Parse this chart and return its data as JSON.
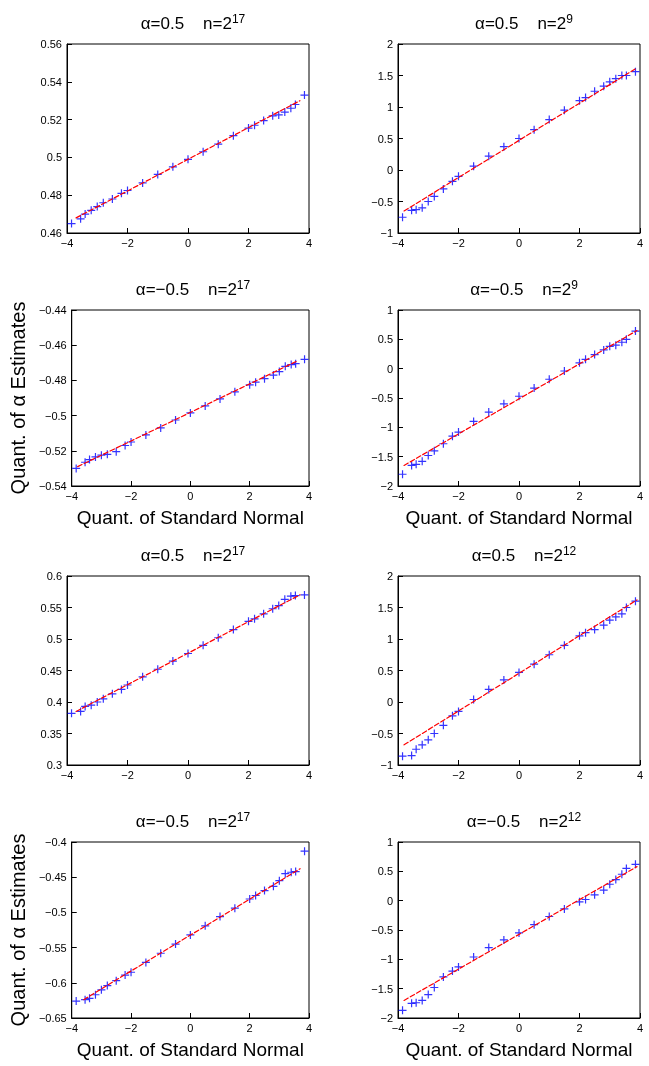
{
  "chart_data": [
    {
      "type": "scatter",
      "title": "α=0.5    n=2$^{17}$",
      "xlim": [
        -4,
        4
      ],
      "xticks": [
        -4,
        -2,
        0,
        2,
        4
      ],
      "ylim": [
        0.46,
        0.56
      ],
      "yticks": [
        0.46,
        0.48,
        0.5,
        0.52,
        0.54,
        0.56
      ],
      "grid": false,
      "x": [
        -3.85,
        -3.55,
        -3.4,
        -3.2,
        -3.0,
        -2.8,
        -2.5,
        -2.2,
        -2,
        -1.5,
        -1,
        -0.5,
        0,
        0.5,
        1,
        1.5,
        2,
        2.2,
        2.5,
        2.8,
        3.0,
        3.2,
        3.4,
        3.55,
        3.85
      ],
      "series": [
        {
          "type": "scatter",
          "color": "#0000ff",
          "marker": "cross",
          "values": [
            0.465,
            0.4675,
            0.47,
            0.472,
            0.474,
            0.476,
            0.478,
            0.481,
            0.4825,
            0.4865,
            0.491,
            0.495,
            0.499,
            0.503,
            0.507,
            0.5115,
            0.5155,
            0.517,
            0.5195,
            0.522,
            0.5225,
            0.524,
            0.526,
            0.528,
            0.533
          ]
        },
        {
          "type": "line",
          "color": "#ff0000",
          "line_style": "dashed",
          "marker": "none",
          "x": [
            -3.7,
            3.7
          ],
          "values": [
            0.468,
            0.53
          ]
        }
      ]
    },
    {
      "type": "scatter",
      "title": "α=0.5    n=2$^{9}$",
      "xlim": [
        -4,
        4
      ],
      "xticks": [
        -4,
        -2,
        0,
        2,
        4
      ],
      "ylim": [
        -1,
        2
      ],
      "yticks": [
        -1,
        -0.5,
        0,
        0.5,
        1,
        1.5,
        2
      ],
      "grid": false,
      "x": [
        -3.85,
        -3.55,
        -3.4,
        -3.2,
        -3.0,
        -2.8,
        -2.5,
        -2.2,
        -2,
        -1.5,
        -1,
        -0.5,
        0,
        0.5,
        1,
        1.5,
        2,
        2.2,
        2.5,
        2.8,
        3.0,
        3.2,
        3.4,
        3.55,
        3.85
      ],
      "series": [
        {
          "type": "scatter",
          "color": "#0000ff",
          "marker": "cross",
          "values": [
            -0.75,
            -0.64,
            -0.63,
            -0.6,
            -0.5,
            -0.42,
            -0.3,
            -0.18,
            -0.1,
            0.06,
            0.22,
            0.37,
            0.5,
            0.64,
            0.8,
            0.95,
            1.1,
            1.15,
            1.25,
            1.33,
            1.4,
            1.45,
            1.5,
            1.5,
            1.56
          ]
        },
        {
          "type": "line",
          "color": "#ff0000",
          "line_style": "dashed",
          "marker": "none",
          "x": [
            -3.8,
            3.9
          ],
          "values": [
            -0.65,
            1.62
          ]
        }
      ]
    },
    {
      "type": "scatter",
      "title": "α=−0.5    n=2$^{17}$",
      "ylabel": "Quant. of α Estimates",
      "xlabel": "Quant. of Standard Normal",
      "xlim": [
        -4,
        4
      ],
      "xticks": [
        -4,
        -2,
        0,
        2,
        4
      ],
      "ylim": [
        -0.54,
        -0.44
      ],
      "yticks": [
        -0.54,
        -0.52,
        -0.5,
        -0.48,
        -0.46,
        -0.44
      ],
      "grid": false,
      "x": [
        -3.85,
        -3.55,
        -3.4,
        -3.2,
        -3.0,
        -2.8,
        -2.5,
        -2.2,
        -2,
        -1.5,
        -1,
        -0.5,
        0,
        0.5,
        1,
        1.5,
        2,
        2.2,
        2.5,
        2.8,
        3.0,
        3.2,
        3.4,
        3.55,
        3.85
      ],
      "series": [
        {
          "type": "scatter",
          "color": "#0000ff",
          "marker": "cross",
          "values": [
            -0.53,
            -0.5265,
            -0.525,
            -0.5235,
            -0.5225,
            -0.522,
            -0.5205,
            -0.517,
            -0.515,
            -0.511,
            -0.507,
            -0.5025,
            -0.4985,
            -0.4945,
            -0.4905,
            -0.4865,
            -0.4825,
            -0.481,
            -0.479,
            -0.477,
            -0.475,
            -0.472,
            -0.471,
            -0.4705,
            -0.468
          ]
        },
        {
          "type": "line",
          "color": "#ff0000",
          "line_style": "dashed",
          "marker": "none",
          "x": [
            -3.8,
            3.6
          ],
          "values": [
            -0.529,
            -0.469
          ]
        }
      ]
    },
    {
      "type": "scatter",
      "title": "α=−0.5    n=2$^{9}$",
      "xlabel": "Quant. of Standard Normal",
      "xlim": [
        -4,
        4
      ],
      "xticks": [
        -4,
        -2,
        0,
        2,
        4
      ],
      "ylim": [
        -2,
        1
      ],
      "yticks": [
        -2,
        -1.5,
        -1,
        -0.5,
        0,
        0.5,
        1
      ],
      "grid": false,
      "x": [
        -3.85,
        -3.55,
        -3.4,
        -3.2,
        -3.0,
        -2.8,
        -2.5,
        -2.2,
        -2,
        -1.5,
        -1,
        -0.5,
        0,
        0.5,
        1,
        1.5,
        2,
        2.2,
        2.5,
        2.8,
        3.0,
        3.2,
        3.4,
        3.55,
        3.85
      ],
      "series": [
        {
          "type": "scatter",
          "color": "#0000ff",
          "marker": "cross",
          "values": [
            -1.8,
            -1.65,
            -1.63,
            -1.58,
            -1.48,
            -1.4,
            -1.28,
            -1.15,
            -1.08,
            -0.9,
            -0.74,
            -0.6,
            -0.47,
            -0.33,
            -0.18,
            -0.04,
            0.1,
            0.16,
            0.24,
            0.32,
            0.38,
            0.4,
            0.45,
            0.5,
            0.64
          ]
        },
        {
          "type": "line",
          "color": "#ff0000",
          "line_style": "dashed",
          "marker": "none",
          "x": [
            -3.8,
            3.9
          ],
          "values": [
            -1.65,
            0.65
          ]
        }
      ]
    },
    {
      "type": "scatter",
      "title": "α=0.5    n=2$^{17}$",
      "xlim": [
        -4,
        4
      ],
      "xticks": [
        -4,
        -2,
        0,
        2,
        4
      ],
      "ylim": [
        0.3,
        0.6
      ],
      "yticks": [
        0.3,
        0.35,
        0.4,
        0.45,
        0.5,
        0.55,
        0.6
      ],
      "grid": false,
      "x": [
        -3.85,
        -3.55,
        -3.4,
        -3.2,
        -3.0,
        -2.8,
        -2.5,
        -2.2,
        -2,
        -1.5,
        -1,
        -0.5,
        0,
        0.5,
        1,
        1.5,
        2,
        2.2,
        2.5,
        2.8,
        3.0,
        3.2,
        3.4,
        3.55,
        3.85
      ],
      "series": [
        {
          "type": "scatter",
          "color": "#0000ff",
          "marker": "cross",
          "values": [
            0.382,
            0.385,
            0.393,
            0.395,
            0.4,
            0.405,
            0.413,
            0.42,
            0.427,
            0.44,
            0.452,
            0.465,
            0.477,
            0.49,
            0.502,
            0.515,
            0.528,
            0.532,
            0.54,
            0.548,
            0.553,
            0.563,
            0.568,
            0.569,
            0.57
          ]
        },
        {
          "type": "line",
          "color": "#ff0000",
          "line_style": "dashed",
          "marker": "none",
          "x": [
            -3.7,
            3.7
          ],
          "values": [
            0.385,
            0.57
          ]
        }
      ]
    },
    {
      "type": "scatter",
      "title": "α=0.5    n=2$^{12}$",
      "xlim": [
        -4,
        4
      ],
      "xticks": [
        -4,
        -2,
        0,
        2,
        4
      ],
      "ylim": [
        -1,
        2
      ],
      "yticks": [
        -1,
        -0.5,
        0,
        0.5,
        1,
        1.5,
        2
      ],
      "grid": false,
      "x": [
        -3.85,
        -3.55,
        -3.4,
        -3.2,
        -3.0,
        -2.8,
        -2.5,
        -2.2,
        -2,
        -1.5,
        -1,
        -0.5,
        0,
        0.5,
        1,
        1.5,
        2,
        2.2,
        2.5,
        2.8,
        3.0,
        3.2,
        3.4,
        3.55,
        3.85
      ],
      "series": [
        {
          "type": "scatter",
          "color": "#0000ff",
          "marker": "cross",
          "values": [
            -0.86,
            -0.85,
            -0.75,
            -0.68,
            -0.6,
            -0.5,
            -0.37,
            -0.22,
            -0.15,
            0.04,
            0.2,
            0.35,
            0.47,
            0.6,
            0.75,
            0.9,
            1.05,
            1.1,
            1.15,
            1.22,
            1.3,
            1.35,
            1.4,
            1.5,
            1.6
          ]
        },
        {
          "type": "line",
          "color": "#ff0000",
          "line_style": "dashed",
          "marker": "none",
          "x": [
            -3.8,
            3.9
          ],
          "values": [
            -0.68,
            1.62
          ]
        }
      ]
    },
    {
      "type": "scatter",
      "title": "α=−0.5    n=2$^{17}$",
      "ylabel": "Quant. of α Estimates",
      "xlabel": "Quant. of Standard Normal",
      "xlim": [
        -4,
        4
      ],
      "xticks": [
        -4,
        -2,
        0,
        2,
        4
      ],
      "ylim": [
        -0.65,
        -0.4
      ],
      "yticks": [
        -0.65,
        -0.6,
        -0.55,
        -0.5,
        -0.45,
        -0.4
      ],
      "grid": false,
      "x": [
        -3.85,
        -3.55,
        -3.4,
        -3.2,
        -3.0,
        -2.8,
        -2.5,
        -2.2,
        -2,
        -1.5,
        -1,
        -0.5,
        0,
        0.5,
        1,
        1.5,
        2,
        2.2,
        2.5,
        2.8,
        3.0,
        3.2,
        3.4,
        3.55,
        3.85
      ],
      "series": [
        {
          "type": "scatter",
          "color": "#0000ff",
          "marker": "cross",
          "values": [
            -0.626,
            -0.624,
            -0.622,
            -0.617,
            -0.61,
            -0.604,
            -0.597,
            -0.589,
            -0.585,
            -0.571,
            -0.558,
            -0.545,
            -0.532,
            -0.519,
            -0.506,
            -0.494,
            -0.481,
            -0.476,
            -0.469,
            -0.463,
            -0.455,
            -0.445,
            -0.443,
            -0.442,
            -0.413
          ]
        },
        {
          "type": "line",
          "color": "#ff0000",
          "line_style": "dashed",
          "marker": "none",
          "x": [
            -3.6,
            3.7
          ],
          "values": [
            -0.624,
            -0.438
          ]
        }
      ]
    },
    {
      "type": "scatter",
      "title": "α=−0.5    n=2$^{12}$",
      "xlabel": "Quant. of Standard Normal",
      "xlim": [
        -4,
        4
      ],
      "xticks": [
        -4,
        -2,
        0,
        2,
        4
      ],
      "ylim": [
        -2,
        1
      ],
      "yticks": [
        -2,
        -1.5,
        -1,
        -0.5,
        0,
        0.5,
        1
      ],
      "grid": false,
      "x": [
        -3.85,
        -3.55,
        -3.4,
        -3.2,
        -3.0,
        -2.8,
        -2.5,
        -2.2,
        -2,
        -1.5,
        -1,
        -0.5,
        0,
        0.5,
        1,
        1.5,
        2,
        2.2,
        2.5,
        2.8,
        3.0,
        3.2,
        3.4,
        3.55,
        3.85
      ],
      "series": [
        {
          "type": "scatter",
          "color": "#0000ff",
          "marker": "cross",
          "values": [
            -1.87,
            -1.75,
            -1.74,
            -1.7,
            -1.6,
            -1.48,
            -1.3,
            -1.2,
            -1.13,
            -0.96,
            -0.8,
            -0.67,
            -0.55,
            -0.41,
            -0.27,
            -0.14,
            -0.02,
            0.02,
            0.1,
            0.18,
            0.28,
            0.36,
            0.45,
            0.55,
            0.62
          ]
        },
        {
          "type": "line",
          "color": "#ff0000",
          "line_style": "dashed",
          "marker": "none",
          "x": [
            -3.8,
            3.9
          ],
          "values": [
            -1.7,
            0.58
          ]
        }
      ]
    }
  ]
}
